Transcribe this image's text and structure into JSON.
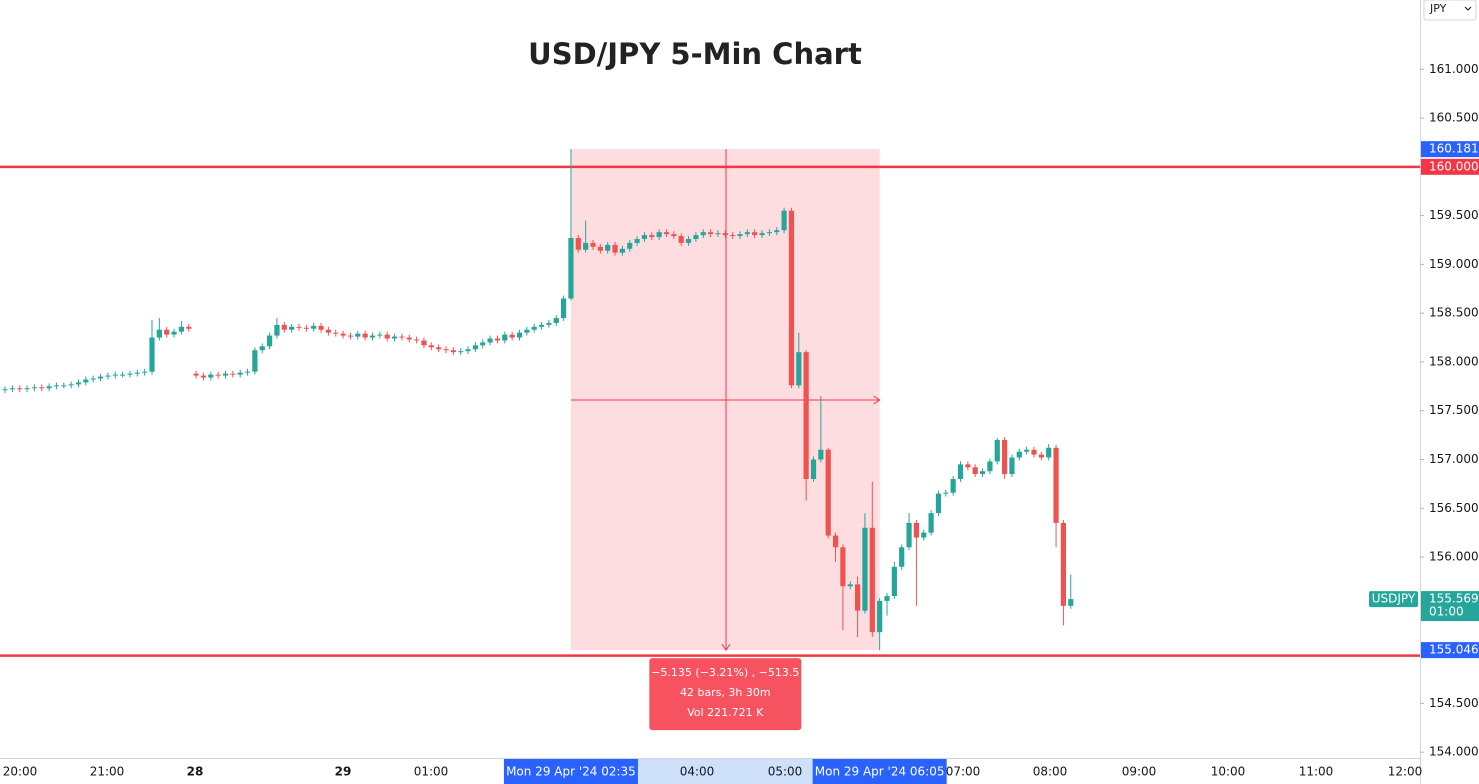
{
  "chart_data": {
    "type": "candlestick",
    "title": "USD/JPY 5-Min Chart",
    "currency": "JPY",
    "ylim": [
      153.94,
      161.71
    ],
    "yticks": [
      {
        "value": 161,
        "label": "161.000"
      },
      {
        "value": 160.5,
        "label": "160.500"
      },
      {
        "value": 159.5,
        "label": "159.500"
      },
      {
        "value": 159,
        "label": "159.000"
      },
      {
        "value": 158.5,
        "label": "158.500"
      },
      {
        "value": 158,
        "label": "158.000"
      },
      {
        "value": 157.5,
        "label": "157.500"
      },
      {
        "value": 157,
        "label": "157.000"
      },
      {
        "value": 156.5,
        "label": "156.500"
      },
      {
        "value": 156,
        "label": "156.000"
      },
      {
        "value": 154.5,
        "label": "154.500"
      },
      {
        "value": 154,
        "label": "154.000"
      }
    ],
    "grid": false,
    "x_labels": [
      "20:00",
      "21:00",
      "28",
      "29",
      "01:00",
      "04:00",
      "05:00",
      "07:00",
      "08:00",
      "09:00",
      "10:00",
      "11:00",
      "12:00"
    ],
    "up_color": "#26a69a",
    "down_color": "#ef5350",
    "open": [
      157.71,
      157.72,
      157.73,
      157.72,
      157.73,
      157.74,
      157.73,
      157.75,
      157.76,
      157.76,
      157.77,
      157.79,
      157.82,
      157.83,
      157.85,
      157.86,
      157.87,
      157.87,
      157.88,
      157.89,
      157.9,
      158.25,
      158.33,
      158.28,
      158.31,
      158.36,
      157.88,
      157.86,
      157.84,
      157.87,
      157.86,
      157.88,
      157.87,
      157.89,
      157.9,
      158.12,
      158.16,
      158.27,
      158.38,
      158.33,
      158.36,
      158.35,
      158.34,
      158.37,
      158.33,
      158.3,
      158.29,
      158.27,
      158.26,
      158.29,
      158.25,
      158.27,
      158.28,
      158.24,
      158.26,
      158.25,
      158.23,
      158.22,
      158.17,
      158.15,
      158.13,
      158.12,
      158.1,
      158.11,
      158.13,
      158.17,
      158.2,
      158.24,
      158.22,
      158.28,
      158.25,
      158.3,
      158.33,
      158.36,
      158.38,
      158.4,
      158.45,
      158.65,
      159.27,
      159.15,
      159.22,
      159.18,
      159.14,
      159.2,
      159.12,
      159.16,
      159.22,
      159.26,
      159.3,
      159.28,
      159.33,
      159.31,
      159.29,
      159.22,
      159.26,
      159.3,
      159.33,
      159.31,
      159.32,
      159.3,
      159.29,
      159.31,
      159.33,
      159.3,
      159.32,
      159.33,
      159.35,
      159.55,
      157.76,
      158.1,
      156.8,
      157.0,
      157.1,
      156.22,
      156.1,
      155.7,
      155.72,
      155.45,
      156.3,
      155.23,
      155.55,
      155.6,
      155.9,
      156.1,
      156.35,
      156.2,
      156.25,
      156.45,
      156.65,
      156.66,
      156.8,
      156.95,
      156.92,
      156.85,
      156.88,
      156.98,
      157.2,
      156.85,
      157.02,
      157.08,
      157.1,
      157.05,
      157.02,
      157.12,
      156.35,
      155.5
    ],
    "high": [
      157.75,
      157.76,
      157.76,
      157.76,
      157.77,
      157.77,
      157.78,
      157.79,
      157.79,
      157.8,
      157.82,
      157.85,
      157.86,
      157.88,
      157.89,
      157.9,
      157.9,
      157.91,
      157.92,
      157.93,
      158.43,
      158.45,
      158.36,
      158.34,
      158.42,
      158.39,
      157.91,
      157.89,
      157.9,
      157.9,
      157.91,
      157.91,
      157.92,
      157.93,
      158.15,
      158.19,
      158.3,
      158.45,
      158.41,
      158.39,
      158.39,
      158.38,
      158.4,
      158.4,
      158.36,
      158.33,
      158.32,
      158.3,
      158.32,
      158.32,
      158.3,
      158.31,
      158.31,
      158.29,
      158.29,
      158.28,
      158.26,
      158.25,
      158.2,
      158.18,
      158.16,
      158.15,
      158.14,
      158.16,
      158.2,
      158.23,
      158.27,
      158.27,
      158.31,
      158.31,
      158.33,
      158.36,
      158.39,
      158.41,
      158.43,
      158.48,
      158.68,
      160.181,
      159.3,
      159.45,
      159.25,
      159.21,
      159.23,
      159.23,
      159.19,
      159.25,
      159.29,
      159.33,
      159.33,
      159.36,
      159.36,
      159.34,
      159.32,
      159.29,
      159.33,
      159.36,
      159.36,
      159.35,
      159.35,
      159.33,
      159.34,
      159.36,
      159.36,
      159.35,
      159.36,
      159.38,
      159.58,
      159.58,
      158.3,
      158.12,
      157.03,
      157.65,
      157.12,
      156.25,
      156.13,
      155.75,
      155.8,
      156.45,
      156.77,
      155.58,
      155.63,
      155.95,
      156.13,
      156.45,
      156.38,
      156.28,
      156.48,
      156.68,
      156.69,
      156.83,
      156.98,
      156.98,
      156.95,
      156.91,
      157.01,
      157.22,
      157.23,
      157.05,
      157.11,
      157.13,
      157.13,
      157.08,
      157.16,
      157.15,
      156.38,
      155.82
    ],
    "low": [
      157.68,
      157.69,
      157.69,
      157.69,
      157.7,
      157.7,
      157.7,
      157.72,
      157.73,
      157.73,
      157.74,
      157.76,
      157.79,
      157.8,
      157.82,
      157.83,
      157.84,
      157.84,
      157.85,
      157.86,
      157.87,
      158.22,
      158.25,
      158.25,
      158.28,
      158.31,
      157.83,
      157.81,
      157.81,
      157.83,
      157.83,
      157.84,
      157.84,
      157.86,
      157.87,
      158.09,
      158.13,
      158.24,
      158.3,
      158.3,
      158.32,
      158.31,
      158.31,
      158.3,
      158.27,
      158.26,
      158.24,
      158.23,
      158.23,
      158.22,
      158.22,
      158.24,
      158.21,
      158.21,
      158.22,
      158.2,
      158.19,
      158.14,
      158.12,
      158.1,
      158.09,
      158.07,
      158.07,
      158.08,
      158.1,
      158.14,
      158.17,
      158.19,
      158.19,
      158.22,
      158.22,
      158.27,
      158.3,
      158.33,
      158.35,
      158.37,
      158.42,
      158.63,
      159.12,
      159.12,
      159.15,
      159.11,
      159.11,
      159.09,
      159.09,
      159.13,
      159.19,
      159.23,
      159.25,
      159.25,
      159.28,
      159.26,
      159.19,
      159.19,
      159.23,
      159.27,
      159.28,
      159.28,
      159.27,
      159.26,
      159.26,
      159.28,
      159.27,
      159.27,
      159.29,
      159.3,
      159.32,
      157.73,
      157.73,
      156.58,
      156.77,
      156.97,
      156.19,
      155.95,
      155.25,
      155.67,
      155.18,
      155.42,
      155.18,
      155.046,
      155.4,
      155.57,
      155.87,
      156.07,
      155.5,
      156.17,
      156.22,
      156.42,
      156.62,
      156.63,
      156.77,
      156.89,
      156.82,
      156.82,
      156.85,
      156.95,
      156.8,
      156.82,
      156.99,
      157.05,
      157.02,
      156.99,
      156.99,
      156.1,
      155.3,
      155.47
    ],
    "close": [
      157.72,
      157.73,
      157.72,
      157.73,
      157.74,
      157.73,
      157.75,
      157.76,
      157.76,
      157.77,
      157.79,
      157.82,
      157.83,
      157.85,
      157.86,
      157.87,
      157.87,
      157.88,
      157.89,
      157.9,
      158.25,
      158.33,
      158.28,
      158.31,
      158.36,
      158.34,
      157.86,
      157.84,
      157.87,
      157.86,
      157.88,
      157.87,
      157.89,
      157.9,
      158.12,
      158.16,
      158.27,
      158.38,
      158.33,
      158.36,
      158.35,
      158.34,
      158.37,
      158.33,
      158.3,
      158.29,
      158.27,
      158.26,
      158.29,
      158.25,
      158.27,
      158.28,
      158.24,
      158.26,
      158.25,
      158.23,
      158.22,
      158.17,
      158.15,
      158.13,
      158.12,
      158.1,
      158.11,
      158.13,
      158.17,
      158.2,
      158.24,
      158.22,
      158.28,
      158.25,
      158.3,
      158.33,
      158.36,
      158.38,
      158.4,
      158.45,
      158.65,
      159.27,
      159.15,
      159.22,
      159.18,
      159.14,
      159.2,
      159.12,
      159.16,
      159.22,
      159.26,
      159.3,
      159.28,
      159.33,
      159.31,
      159.29,
      159.22,
      159.26,
      159.3,
      159.33,
      159.31,
      159.32,
      159.3,
      159.29,
      159.31,
      159.33,
      159.3,
      159.32,
      159.33,
      159.35,
      159.55,
      157.76,
      158.1,
      156.8,
      157.0,
      157.1,
      156.22,
      156.1,
      155.7,
      155.72,
      155.45,
      156.3,
      155.23,
      155.55,
      155.6,
      155.9,
      156.1,
      156.35,
      156.2,
      156.25,
      156.45,
      156.65,
      156.66,
      156.8,
      156.95,
      156.92,
      156.85,
      156.88,
      156.98,
      157.2,
      156.85,
      157.02,
      157.08,
      157.1,
      157.05,
      157.02,
      157.12,
      156.35,
      155.5,
      155.569
    ],
    "lines": [
      {
        "value": 160,
        "color": "#f23645"
      },
      {
        "value": 154.99,
        "color": "#f23645"
      }
    ],
    "axis_labels": [
      {
        "value": 160.181,
        "color": "#2962ff"
      },
      {
        "value": 160,
        "label": "160.000",
        "color": "#f23645"
      },
      {
        "value": 155.046,
        "color": "#2962ff"
      }
    ],
    "last_price": {
      "symbol": "USDJPY",
      "countdown": "01:00"
    },
    "measure": {
      "high": 160.181,
      "low": 155.046,
      "change": "−5.135 (−3.21%) , −513.5",
      "bars": "42 bars, 3h 30m",
      "volume": "Vol 221.721 K",
      "start_time": "Mon 29 Apr '24  02:35",
      "end_time": "Mon 29 Apr '24  06:05"
    }
  }
}
